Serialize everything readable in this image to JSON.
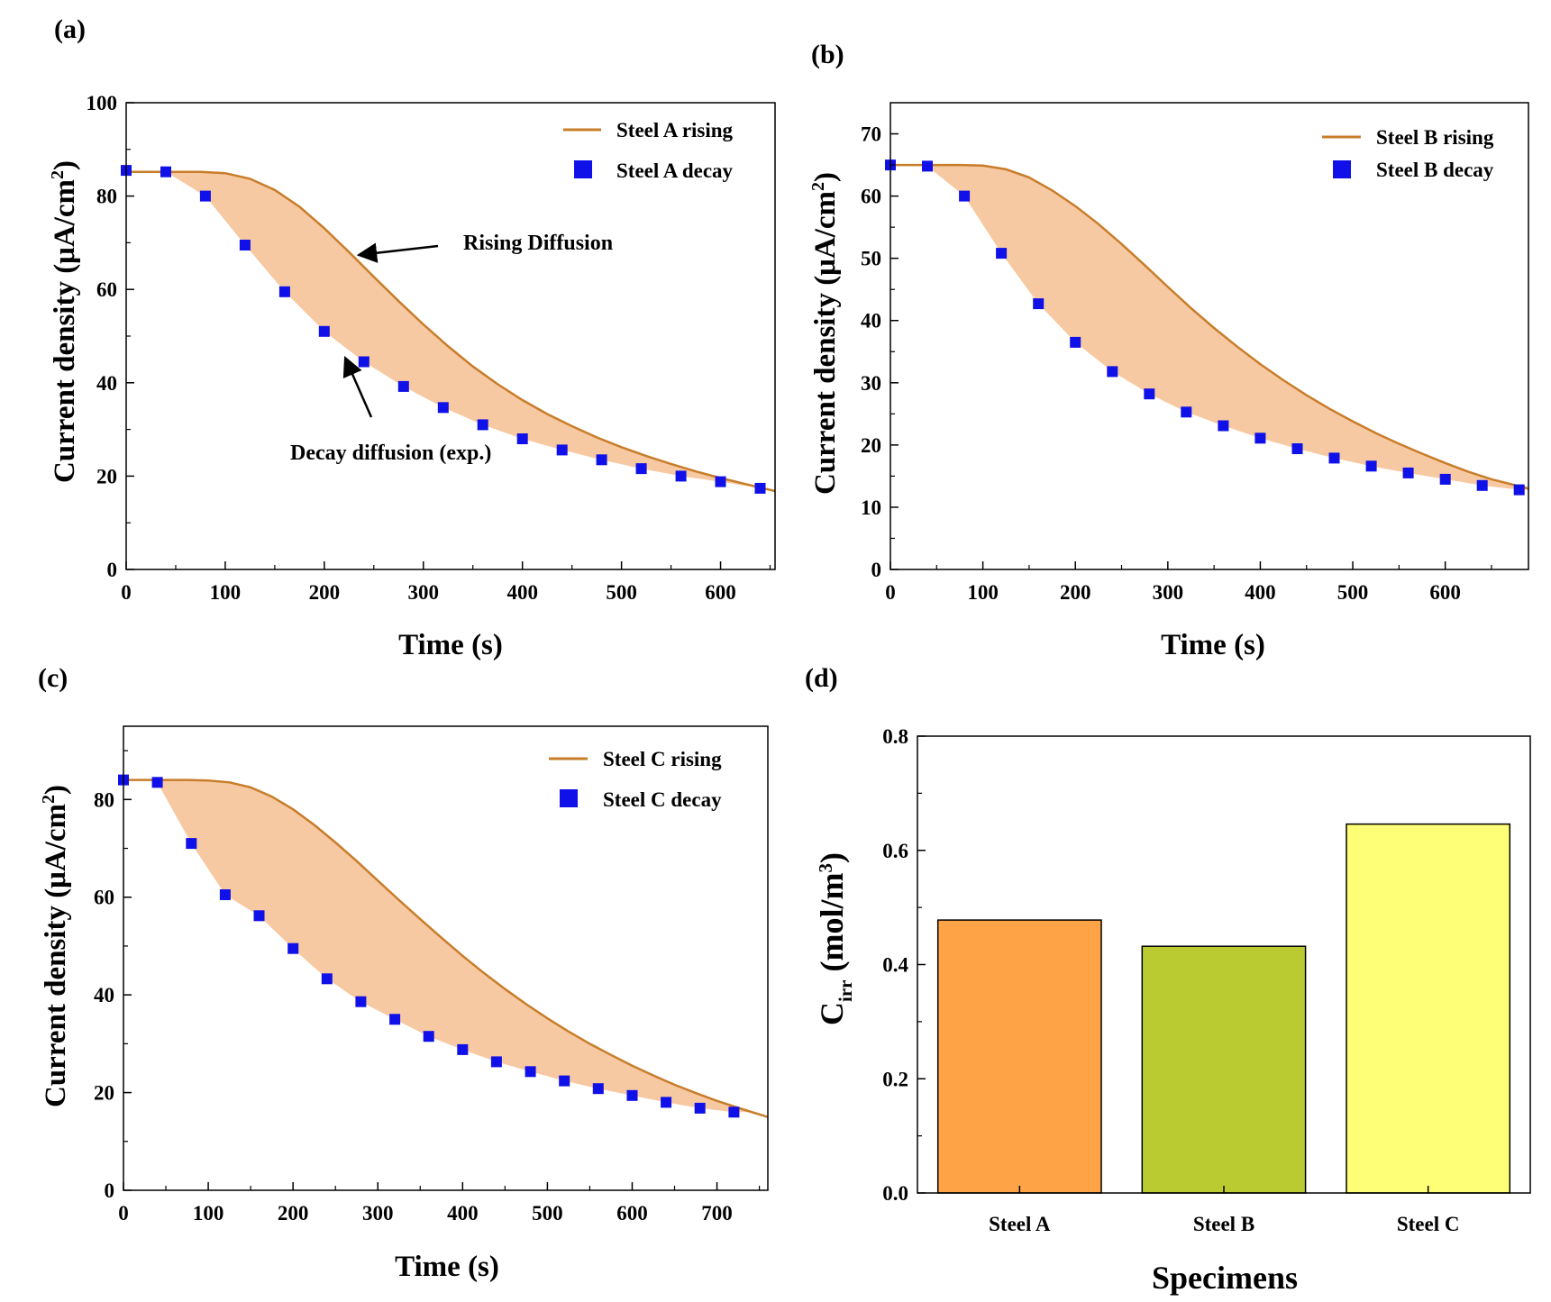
{
  "colors": {
    "rising_line": "#c87d2a",
    "fill": "#f7c9a2",
    "decay_marker": "#1010e8",
    "bar_a": "#ffa446",
    "bar_b": "#b9cb31",
    "bar_c": "#ffff77"
  },
  "chart_data": [
    {
      "panel": "(a)",
      "type": "line",
      "xlabel": "Time (s)",
      "ylabel": "Current density (μA/cm2)",
      "ylabel_main": "Current density (μA/cm",
      "ylabel_sup": "2",
      "ylabel_end": ")",
      "xlim": [
        0,
        655
      ],
      "ylim": [
        0,
        100
      ],
      "xticks": [
        0,
        100,
        200,
        300,
        400,
        500,
        600
      ],
      "yticks": [
        0,
        20,
        40,
        60,
        80,
        100
      ],
      "series": [
        {
          "name": "Steel A rising",
          "kind": "line",
          "x": [
            0,
            50,
            75,
            100,
            125,
            150,
            175,
            200,
            225,
            250,
            275,
            300,
            325,
            350,
            375,
            400,
            425,
            450,
            475,
            500,
            525,
            550,
            575,
            600,
            625,
            655
          ],
          "y": [
            85.2,
            85.2,
            85.2,
            84.9,
            83.7,
            81.3,
            77.7,
            73.1,
            68.0,
            62.7,
            57.5,
            52.5,
            47.8,
            43.5,
            39.7,
            36.3,
            33.3,
            30.7,
            28.3,
            26.2,
            24.3,
            22.6,
            21.0,
            19.6,
            18.3,
            16.8
          ]
        },
        {
          "name": "Steel A decay",
          "kind": "scatter",
          "x": [
            0,
            40,
            80,
            120,
            160,
            200,
            240,
            280,
            320,
            360,
            400,
            440,
            480,
            520,
            560,
            600,
            640
          ],
          "y": [
            85.5,
            85.2,
            80.0,
            69.5,
            59.5,
            51.0,
            44.5,
            39.2,
            34.7,
            31.0,
            28.0,
            25.6,
            23.5,
            21.6,
            20.0,
            18.8,
            17.4
          ]
        }
      ],
      "annotations": [
        "Rising Diffusion",
        "Decay diffusion (exp.)"
      ]
    },
    {
      "panel": "(b)",
      "type": "line",
      "xlabel": "Time (s)",
      "ylabel": "Current density (μA/cm2)",
      "ylabel_main": "Current density (μA/cm",
      "ylabel_sup": "2",
      "ylabel_end": ")",
      "xlim": [
        0,
        690
      ],
      "ylim": [
        0,
        75
      ],
      "xticks": [
        0,
        100,
        200,
        300,
        400,
        500,
        600
      ],
      "yticks": [
        0,
        10,
        20,
        30,
        40,
        50,
        60,
        70
      ],
      "series": [
        {
          "name": "Steel B rising",
          "kind": "line",
          "x": [
            0,
            50,
            75,
            100,
            125,
            150,
            175,
            200,
            225,
            250,
            275,
            300,
            325,
            350,
            375,
            400,
            425,
            450,
            475,
            500,
            525,
            550,
            575,
            600,
            625,
            650,
            690
          ],
          "y": [
            65.0,
            65.0,
            65.0,
            64.9,
            64.3,
            63.0,
            60.9,
            58.4,
            55.5,
            52.3,
            48.9,
            45.4,
            42.0,
            38.8,
            35.8,
            33.0,
            30.4,
            28.0,
            25.8,
            23.8,
            21.9,
            20.2,
            18.6,
            17.1,
            15.7,
            14.5,
            13.0
          ]
        },
        {
          "name": "Steel B decay",
          "kind": "scatter",
          "x": [
            0,
            40,
            80,
            120,
            160,
            200,
            240,
            280,
            320,
            360,
            400,
            440,
            480,
            520,
            560,
            600,
            640,
            680
          ],
          "y": [
            65.0,
            64.8,
            60.0,
            50.8,
            42.7,
            36.5,
            31.8,
            28.2,
            25.3,
            23.1,
            21.1,
            19.4,
            17.9,
            16.6,
            15.5,
            14.5,
            13.5,
            12.8
          ]
        }
      ]
    },
    {
      "panel": "(c)",
      "type": "line",
      "xlabel": "Time (s)",
      "ylabel": "Current density (μA/cm2)",
      "ylabel_main": "Current density (μA/cm",
      "ylabel_sup": "2",
      "ylabel_end": ")",
      "xlim": [
        0,
        760
      ],
      "ylim": [
        0,
        95
      ],
      "xticks": [
        0,
        100,
        200,
        300,
        400,
        500,
        600,
        700
      ],
      "yticks": [
        0,
        20,
        40,
        60,
        80
      ],
      "series": [
        {
          "name": "Steel C rising",
          "kind": "line",
          "x": [
            0,
            50,
            75,
            100,
            125,
            150,
            175,
            200,
            225,
            250,
            275,
            300,
            325,
            350,
            375,
            400,
            425,
            450,
            475,
            500,
            525,
            550,
            575,
            600,
            625,
            650,
            675,
            700,
            730,
            760
          ],
          "y": [
            84.0,
            84.0,
            84.0,
            83.9,
            83.5,
            82.5,
            80.6,
            78.0,
            74.8,
            71.2,
            67.4,
            63.4,
            59.4,
            55.5,
            51.7,
            48.0,
            44.5,
            41.2,
            38.1,
            35.2,
            32.5,
            30.0,
            27.7,
            25.5,
            23.5,
            21.6,
            19.9,
            18.3,
            16.6,
            15.0
          ]
        },
        {
          "name": "Steel C decay",
          "kind": "scatter",
          "x": [
            0,
            40,
            80,
            120,
            160,
            200,
            240,
            280,
            320,
            360,
            400,
            440,
            480,
            520,
            560,
            600,
            640,
            680,
            720
          ],
          "y": [
            84.0,
            83.5,
            71.0,
            60.5,
            56.2,
            49.5,
            43.3,
            38.6,
            35.0,
            31.5,
            28.8,
            26.3,
            24.3,
            22.4,
            20.8,
            19.4,
            18.0,
            16.8,
            16.0
          ]
        }
      ]
    },
    {
      "panel": "(d)",
      "type": "bar",
      "xlabel": "Specimens",
      "ylabel": "Cirr (mol/m3)",
      "ylabel_c": "C",
      "ylabel_sub": "irr",
      "ylabel_mid": " (mol/m",
      "ylabel_sup": "3",
      "ylabel_end": ")",
      "categories": [
        "Steel A",
        "Steel B",
        "Steel C"
      ],
      "values": [
        0.478,
        0.432,
        0.646
      ],
      "ylim": [
        0,
        0.8
      ],
      "yticks": [
        "0.0",
        "0.2",
        "0.4",
        "0.6",
        "0.8"
      ]
    }
  ]
}
